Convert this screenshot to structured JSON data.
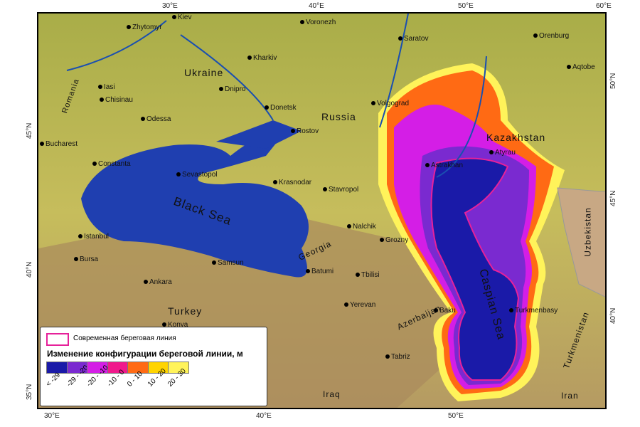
{
  "axes": {
    "top": [
      "30°E",
      "40°E",
      "50°E",
      "60°E"
    ],
    "bottom": [
      "30°E",
      "40°E",
      "50°E"
    ],
    "left": [
      "45°N",
      "40°N",
      "35°N"
    ],
    "right": [
      "50°N",
      "45°N",
      "40°N"
    ]
  },
  "cities": [
    "Kiev",
    "Zhytomyr",
    "Voronezh",
    "Saratov",
    "Orenburg",
    "Kharkiv",
    "Aqtobe",
    "Iasi",
    "Chisinau",
    "Dnipro",
    "Donetsk",
    "Volgograd",
    "Odessa",
    "Rostov",
    "Bucharest",
    "Constanta",
    "Sevastopol",
    "Krasnodar",
    "Stavropol",
    "Astrakhan",
    "Atyrau",
    "Nalchik",
    "Grozny",
    "Istanbul",
    "Bursa",
    "Samsun",
    "Batumi",
    "Tbilisi",
    "Ankara",
    "Baku",
    "Yerevan",
    "Turkmenbasy",
    "Tabriz",
    "Konya"
  ],
  "labels": {
    "ukraine": "Ukraine",
    "russia": "Russia",
    "kazakhstan": "Kazakhstan",
    "black_sea": "Black Sea",
    "georgia": "Georgia",
    "azerbaijan": "Azerbaijan",
    "turkey": "Turkey",
    "caspian": "Caspian Sea",
    "uzbekistan": "Uzbekistan",
    "turkmenistan": "Turkmenistan",
    "iraq": "Iraq",
    "iran": "Iran",
    "romania": "Romania"
  },
  "legend": {
    "shoreline": "Современная береговая линия",
    "title": "Изменение конфигурации береговой линии, м",
    "classes": [
      {
        "label": "< -29",
        "color": "#1a1aa8"
      },
      {
        "label": "-29 - -20",
        "color": "#7a2ad0"
      },
      {
        "label": "-20 - -10",
        "color": "#d41ee6"
      },
      {
        "label": "-10 - 0",
        "color": "#f0198c"
      },
      {
        "label": "0 - 10",
        "color": "#ff6a14"
      },
      {
        "label": "10 - 20",
        "color": "#ffd400"
      },
      {
        "label": "20 - 30",
        "color": "#fff35a"
      }
    ],
    "shoreline_color": "#e6219a"
  },
  "colors": {
    "land": "#b9b452",
    "sea": "#1f3fb0",
    "mountain": "#a58a5a"
  }
}
